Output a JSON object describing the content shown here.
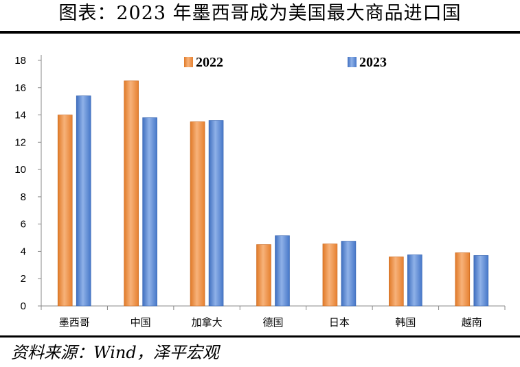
{
  "title": "图表：2023 年墨西哥成为美国最大商品进口国",
  "source": "资料来源：Wind，泽平宏观",
  "colors": {
    "s2022": "#F0913E",
    "s2023": "#5B8AD6"
  },
  "chart_data": {
    "type": "bar",
    "categories": [
      "墨西哥",
      "中国",
      "加拿大",
      "德国",
      "日本",
      "韩国",
      "越南"
    ],
    "series": [
      {
        "name": "2022",
        "values": [
          14.0,
          16.5,
          13.5,
          4.5,
          4.55,
          3.6,
          3.9
        ]
      },
      {
        "name": "2023",
        "values": [
          15.4,
          13.8,
          13.6,
          5.15,
          4.75,
          3.75,
          3.7
        ]
      }
    ],
    "ylim": [
      0,
      18
    ],
    "yticks": [
      "0",
      "2",
      "4",
      "6",
      "8",
      "10",
      "12",
      "14",
      "16",
      "18"
    ],
    "legend_position": "top"
  }
}
